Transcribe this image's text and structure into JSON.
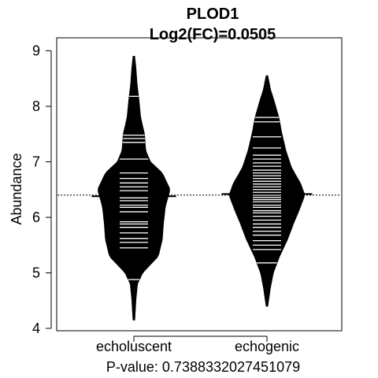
{
  "chart_data": {
    "type": "beanplot",
    "title": "PLOD1",
    "subtitle": "Log2(FC)=0.0505",
    "ylabel": "Abundance",
    "xlabel": "P-value: 0.738833202745107​9",
    "footer": "P-value: 0.7388332027451079",
    "ylim": [
      4,
      9.15
    ],
    "yticks": [
      4,
      5,
      6,
      7,
      8,
      9
    ],
    "overall_mean_line": 6.4,
    "colors": {
      "bean_fill": "#000000",
      "data_lines": "#ffffff",
      "background": "#ffffff"
    },
    "groups": [
      {
        "name": "echoluscent",
        "mean": 6.38,
        "y_range": [
          4.15,
          8.9
        ],
        "density_profile": [
          [
            4.15,
            0.02
          ],
          [
            4.5,
            0.05
          ],
          [
            4.8,
            0.09
          ],
          [
            5.0,
            0.22
          ],
          [
            5.3,
            0.62
          ],
          [
            5.6,
            0.72
          ],
          [
            5.9,
            0.75
          ],
          [
            6.2,
            0.8
          ],
          [
            6.5,
            0.92
          ],
          [
            6.8,
            0.72
          ],
          [
            7.0,
            0.42
          ],
          [
            7.2,
            0.3
          ],
          [
            7.5,
            0.27
          ],
          [
            7.8,
            0.17
          ],
          [
            8.1,
            0.13
          ],
          [
            8.4,
            0.08
          ],
          [
            8.7,
            0.05
          ],
          [
            8.9,
            0.02
          ]
        ],
        "values": [
          4.88,
          5.45,
          5.55,
          5.62,
          5.72,
          5.82,
          5.88,
          5.92,
          6.1,
          6.18,
          6.22,
          6.3,
          6.35,
          6.48,
          6.55,
          6.62,
          6.7,
          6.8,
          7.05,
          7.35,
          7.42,
          7.48,
          8.18
        ]
      },
      {
        "name": "echogenic",
        "mean": 6.42,
        "y_range": [
          4.4,
          8.55
        ],
        "density_profile": [
          [
            4.4,
            0.02
          ],
          [
            4.7,
            0.08
          ],
          [
            5.0,
            0.16
          ],
          [
            5.3,
            0.32
          ],
          [
            5.6,
            0.52
          ],
          [
            5.9,
            0.68
          ],
          [
            6.1,
            0.8
          ],
          [
            6.4,
            0.96
          ],
          [
            6.6,
            0.86
          ],
          [
            6.9,
            0.62
          ],
          [
            7.2,
            0.48
          ],
          [
            7.5,
            0.38
          ],
          [
            7.8,
            0.3
          ],
          [
            8.1,
            0.18
          ],
          [
            8.3,
            0.09
          ],
          [
            8.55,
            0.02
          ]
        ],
        "values": [
          5.18,
          5.42,
          5.5,
          5.58,
          5.68,
          5.75,
          5.82,
          5.88,
          5.95,
          6.02,
          6.08,
          6.12,
          6.18,
          6.22,
          6.28,
          6.32,
          6.36,
          6.4,
          6.45,
          6.5,
          6.55,
          6.6,
          6.65,
          6.7,
          6.75,
          6.8,
          6.85,
          6.92,
          6.98,
          7.05,
          7.12,
          7.25,
          7.45,
          7.72,
          7.8
        ]
      }
    ]
  }
}
